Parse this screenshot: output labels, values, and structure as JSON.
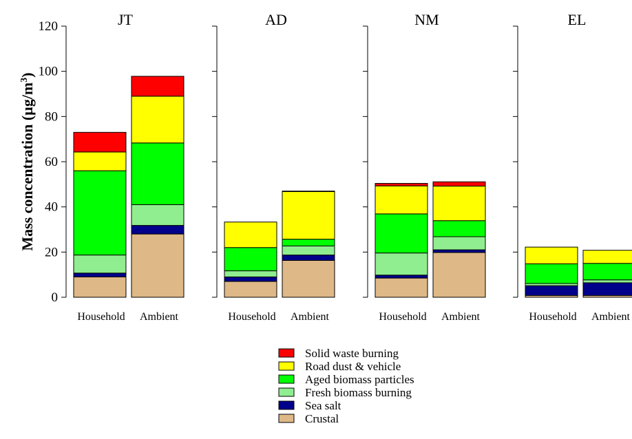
{
  "chart_data": {
    "type": "bar",
    "stacked": true,
    "ylabel_main": "Mass concentration (µg/m",
    "ylabel_sup": "3",
    "ylabel_close": ")",
    "ylim": [
      0,
      120
    ],
    "yticks": [
      "0",
      "20",
      "40",
      "60",
      "80",
      "100",
      "120"
    ],
    "categories": [
      "Household",
      "Ambient"
    ],
    "legend_position": "bottom-center",
    "panels": [
      {
        "title": "JT",
        "stacks": [
          {
            "category": "Household",
            "values": [
              9,
              1.7,
              8,
              37.3,
              8.3,
              8.7
            ]
          },
          {
            "category": "Ambient",
            "values": [
              28,
              3.8,
              9.2,
              27.3,
              20.7,
              8.8
            ]
          }
        ]
      },
      {
        "title": "AD",
        "stacks": [
          {
            "category": "Household",
            "values": [
              7,
              2,
              2.7,
              10.3,
              11.3,
              0
            ]
          },
          {
            "category": "Ambient",
            "values": [
              16.3,
              2.4,
              4,
              3,
              21.1,
              0.2
            ]
          }
        ]
      },
      {
        "title": "NM",
        "stacks": [
          {
            "category": "Household",
            "values": [
              8.5,
              1.3,
              9.8,
              17.3,
              12.4,
              1.1
            ]
          },
          {
            "category": "Ambient",
            "values": [
              19.8,
              1.2,
              5.8,
              7.1,
              15.3,
              1.9
            ]
          }
        ]
      },
      {
        "title": "EL",
        "stacks": [
          {
            "category": "Household",
            "values": [
              0.8,
              4.3,
              1,
              8.7,
              7.4,
              0
            ]
          },
          {
            "category": "Ambient",
            "values": [
              0.8,
              5.6,
              1.3,
              7.3,
              5.8,
              0
            ]
          }
        ]
      }
    ],
    "series": [
      {
        "name": "Crustal",
        "color": "#deb887"
      },
      {
        "name": "Sea salt",
        "color": "#00008b"
      },
      {
        "name": "Fresh biomass burning",
        "color": "#90ee90"
      },
      {
        "name": "Aged biomass particles",
        "color": "#00ff00"
      },
      {
        "name": "Road dust & vehicle",
        "color": "#ffff00"
      },
      {
        "name": "Solid waste burning",
        "color": "#ff0000"
      }
    ],
    "legend_order": [
      5,
      4,
      3,
      2,
      1,
      0
    ]
  }
}
